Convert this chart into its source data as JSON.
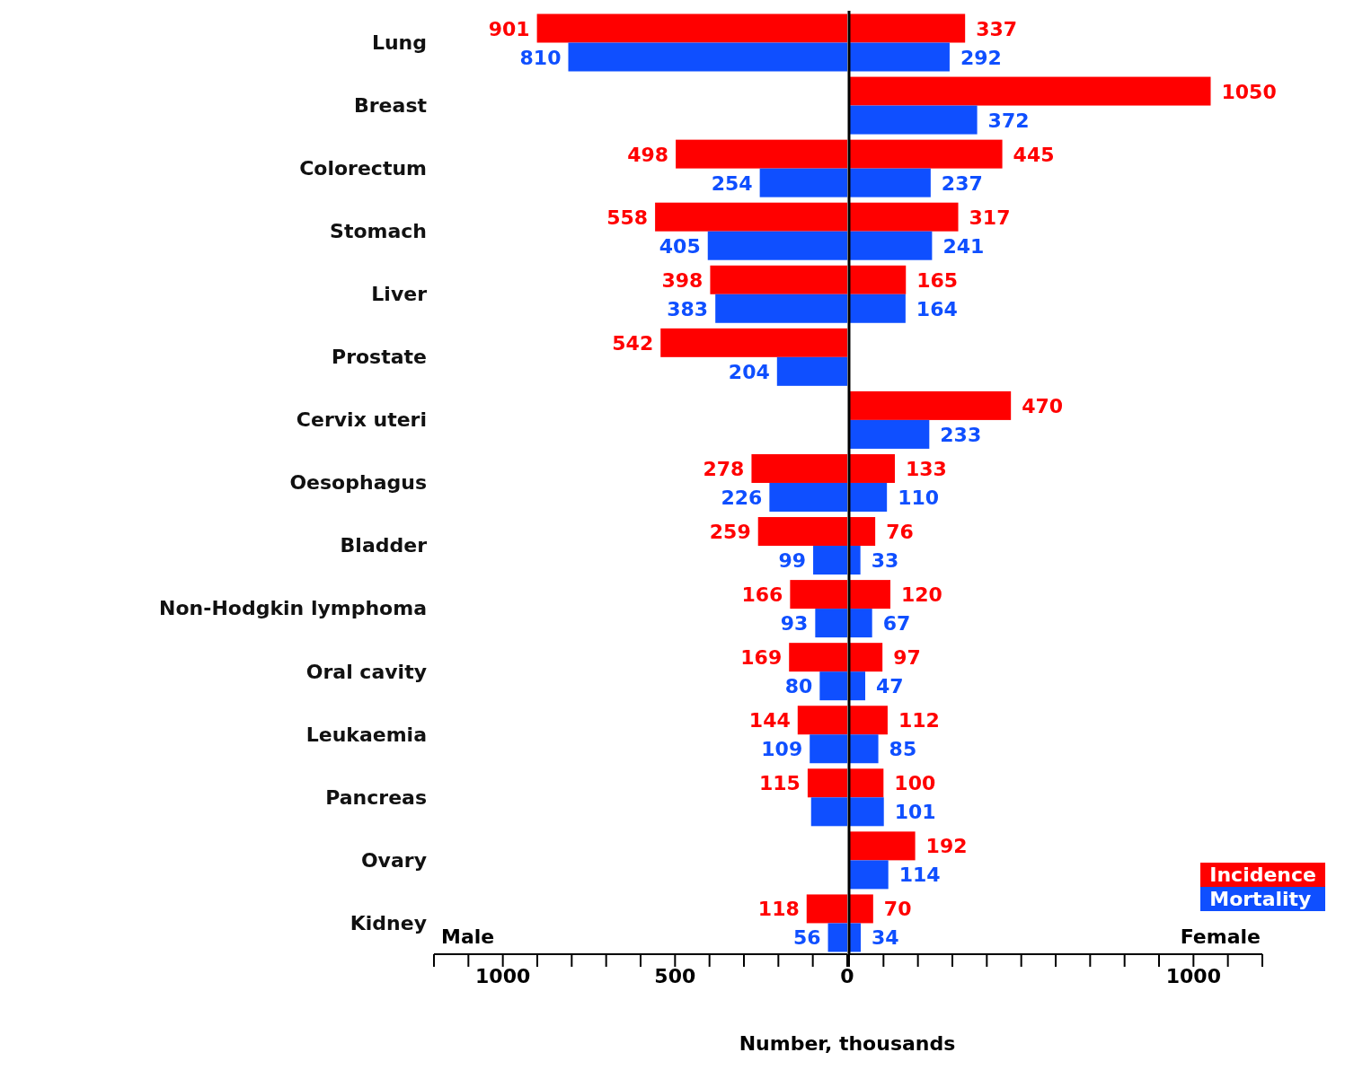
{
  "chart_data": [
    {
      "type": "bar",
      "orientation": "horizontal",
      "xlabel": "Number, thousands",
      "categories": [
        "Lung",
        "Breast",
        "Colorectum",
        "Stomach",
        "Liver",
        "Prostate",
        "Cervix uteri",
        "Oesophagus",
        "Bladder",
        "Non-Hodgkin lymphoma",
        "Oral cavity",
        "Leukaemia",
        "Pancreas",
        "Ovary",
        "Kidney"
      ],
      "series": [
        {
          "color": "#ff0000",
          "values": [
            901,
            null,
            498,
            558,
            398,
            542,
            null,
            278,
            259,
            166,
            169,
            144,
            115,
            null,
            118
          ],
          "value_labels": [
            "901",
            null,
            "498",
            "558",
            "398",
            "542",
            null,
            "278",
            "259",
            "166",
            "169",
            "144",
            "115",
            null,
            "118"
          ]
        },
        {
          "color": "#0f4fff",
          "values": [
            810,
            null,
            254,
            405,
            383,
            204,
            null,
            226,
            99,
            93,
            80,
            109,
            105,
            null,
            56
          ],
          "value_labels": [
            "810",
            null,
            "254",
            "405",
            "383",
            "204",
            null,
            "226",
            "99",
            "93",
            "80",
            "109",
            null,
            null,
            "56"
          ]
        }
      ],
      "xlim": [
        1200,
        0
      ],
      "xticks": [
        {
          "value": 1200,
          "label": null
        },
        {
          "value": 1100,
          "label": null
        },
        1000,
        {
          "value": 900,
          "label": null
        },
        {
          "value": 800,
          "label": null
        },
        {
          "value": 700,
          "label": null
        },
        {
          "value": 600,
          "label": null
        },
        500,
        {
          "value": 400,
          "label": null
        },
        {
          "value": 300,
          "label": null
        },
        {
          "value": 200,
          "label": null
        },
        {
          "value": 100,
          "label": null
        },
        0
      ],
      "annotations": [
        "Male"
      ]
    },
    {
      "type": "bar",
      "orientation": "horizontal",
      "tick_labels": "x",
      "categories": [
        null,
        null,
        null,
        null,
        null,
        null,
        null,
        null,
        null,
        null,
        null,
        null,
        null,
        null,
        null
      ],
      "series": [
        {
          "name": "Incidence",
          "color": "#ff0000",
          "values": [
            337,
            1050,
            445,
            317,
            165,
            null,
            470,
            133,
            76,
            120,
            97,
            112,
            100,
            192,
            70
          ]
        },
        {
          "name": "Mortality",
          "color": "#0f4fff",
          "values": [
            292,
            372,
            237,
            241,
            164,
            null,
            233,
            110,
            33,
            67,
            47,
            85,
            101,
            114,
            34
          ]
        }
      ],
      "data_labels": true,
      "xlim": [
        0,
        1200
      ],
      "xticks": [
        {
          "value": 0,
          "label": null
        },
        {
          "value": 100,
          "label": null
        },
        {
          "value": 200,
          "label": null
        },
        {
          "value": 300,
          "label": null
        },
        {
          "value": 400,
          "label": null
        },
        {
          "value": 500,
          "label": null
        },
        {
          "value": 600,
          "label": null
        },
        {
          "value": 700,
          "label": null
        },
        {
          "value": 800,
          "label": null
        },
        {
          "value": 900,
          "label": null
        },
        1000,
        {
          "value": 1100,
          "label": null
        },
        {
          "value": 1200,
          "label": null
        }
      ],
      "annotations": [
        "Female"
      ],
      "legend": "bottom right"
    }
  ]
}
